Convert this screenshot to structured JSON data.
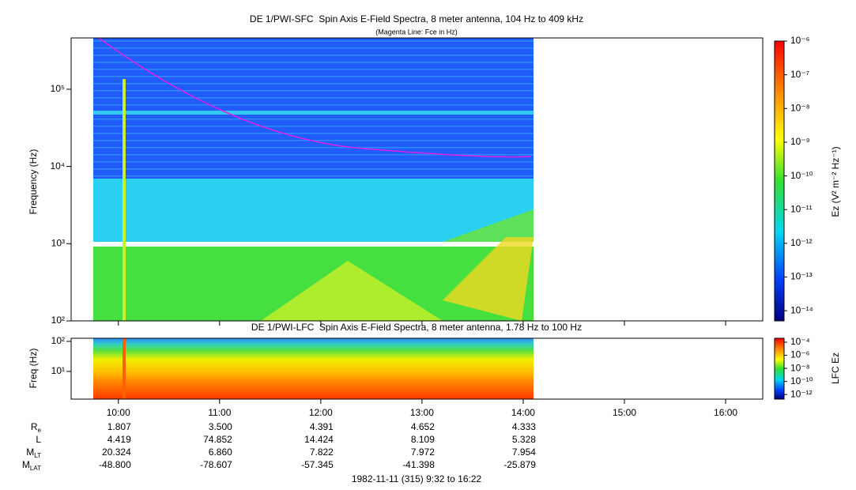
{
  "chart_data": [
    {
      "type": "spectrogram",
      "title": "DE 1/PWI-SFC  Spin Axis E-Field Spectra, 8 meter antenna, 104 Hz to 409 kHz",
      "subtitle": "(Magenta Line: Fce in Hz)",
      "y_label": "Frequency (Hz)",
      "log_y": true,
      "xlim": [
        9.5333,
        16.3667
      ],
      "xticks": [
        {
          "value": 10,
          "label": "10:00"
        },
        {
          "value": 11,
          "label": "11:00"
        },
        {
          "value": 12,
          "label": "12:00"
        },
        {
          "value": 13,
          "label": "13:00"
        },
        {
          "value": 14,
          "label": "14:00"
        },
        {
          "value": 15,
          "label": "15:00"
        },
        {
          "value": 16,
          "label": "16:00"
        }
      ],
      "ylim": [
        100,
        462000
      ],
      "yticks": [
        {
          "value": 100,
          "label": "10²"
        },
        {
          "value": 1000,
          "label": "10³"
        },
        {
          "value": 10000,
          "label": "10⁴"
        },
        {
          "value": 100000,
          "label": "10⁵"
        }
      ],
      "colorbar": {
        "label": "Ez (V² m⁻² Hz⁻¹)",
        "lim": [
          5e-15,
          1e-06
        ],
        "ticks": [
          {
            "value": 1e-06,
            "label": "10⁻⁶"
          },
          {
            "value": 1e-07,
            "label": "10⁻⁷"
          },
          {
            "value": 1e-08,
            "label": "10⁻⁸"
          },
          {
            "value": 1e-09,
            "label": "10⁻⁹"
          },
          {
            "value": 1e-10,
            "label": "10⁻¹⁰"
          },
          {
            "value": 1e-11,
            "label": "10⁻¹¹"
          },
          {
            "value": 1e-12,
            "label": "10⁻¹²"
          },
          {
            "value": 1e-13,
            "label": "10⁻¹³"
          },
          {
            "value": 1e-14,
            "label": "10⁻¹⁴"
          }
        ]
      }
    },
    {
      "type": "spectrogram",
      "title": "DE 1/PWI-LFC  Spin Axis E-Field Spectra, 8 meter antenna, 1.78 Hz to 100 Hz",
      "y_label": "Freq (Hz)",
      "log_y": true,
      "xlim": [
        9.5333,
        16.3667
      ],
      "xticks": [
        {
          "value": 10,
          "label": "10:00"
        },
        {
          "value": 11,
          "label": "11:00"
        },
        {
          "value": 12,
          "label": "12:00"
        },
        {
          "value": 13,
          "label": "13:00"
        },
        {
          "value": 14,
          "label": "14:00"
        },
        {
          "value": 15,
          "label": "15:00"
        },
        {
          "value": 16,
          "label": "16:00"
        }
      ],
      "ylim": [
        1.2,
        127
      ],
      "yticks": [
        {
          "value": 10,
          "label": "10¹"
        },
        {
          "value": 100,
          "label": "10²"
        }
      ],
      "colorbar": {
        "label": "LFC Ez",
        "lim": [
          2e-13,
          0.0004
        ],
        "ticks": [
          {
            "value": 0.0001,
            "label": "10⁻⁴"
          },
          {
            "value": 1e-06,
            "label": "10⁻⁶"
          },
          {
            "value": 1e-08,
            "label": "10⁻⁸"
          },
          {
            "value": 1e-10,
            "label": "10⁻¹⁰"
          },
          {
            "value": 1e-12,
            "label": "10⁻¹²"
          }
        ]
      }
    }
  ],
  "ephemeris": {
    "rows": [
      {
        "label": "R",
        "sub": "e",
        "values": [
          "1.807",
          "3.500",
          "4.391",
          "4.652",
          "4.333"
        ]
      },
      {
        "label": "L",
        "values": [
          "4.419",
          "74.852",
          "14.424",
          "8.109",
          "5.328"
        ]
      },
      {
        "label": "M",
        "sub": "LT",
        "values": [
          "20.324",
          "6.860",
          "7.822",
          "7.972",
          "7.954"
        ]
      },
      {
        "label": "M",
        "sub": "LAT",
        "values": [
          "-48.800",
          "-78.607",
          "-57.345",
          "-41.398",
          "-25.879"
        ]
      }
    ]
  },
  "footer": "1982-11-11 (315) 9:32 to 16:22"
}
